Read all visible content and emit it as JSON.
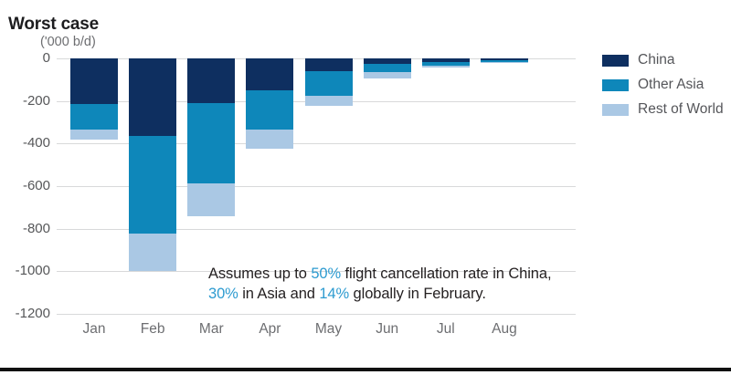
{
  "header": {
    "title": "Worst case"
  },
  "chart_data": {
    "type": "bar",
    "stacked": true,
    "title": "Worst case",
    "unit_label": "('000 b/d)",
    "categories": [
      "Jan",
      "Feb",
      "Mar",
      "Apr",
      "May",
      "Jun",
      "Jul",
      "Aug"
    ],
    "series": [
      {
        "name": "China",
        "color": "#0e2f60",
        "values": [
          -215,
          -365,
          -210,
          -150,
          -60,
          -25,
          -15,
          -8
        ]
      },
      {
        "name": "Other Asia",
        "color": "#0e87ba",
        "values": [
          -120,
          -460,
          -375,
          -185,
          -115,
          -40,
          -20,
          -9
        ]
      },
      {
        "name": "Rest of World",
        "color": "#aac8e4",
        "values": [
          -45,
          -175,
          -155,
          -90,
          -50,
          -30,
          -10,
          -5
        ]
      }
    ],
    "ylim": [
      -1200,
      0
    ],
    "yticks": [
      0,
      -200,
      -400,
      -600,
      -800,
      -1000,
      -1200
    ],
    "grid": true,
    "legend_position": "right"
  },
  "annotation": {
    "accent_color": "#2d9bd0",
    "lines": [
      [
        {
          "text": "Assumes up to "
        },
        {
          "text": "50%",
          "accent": true
        },
        {
          "text": " flight cancellation rate in China,"
        }
      ],
      [
        {
          "text": "30%",
          "accent": true
        },
        {
          "text": " in Asia and "
        },
        {
          "text": "14%",
          "accent": true
        },
        {
          "text": " globally in February."
        }
      ]
    ]
  }
}
